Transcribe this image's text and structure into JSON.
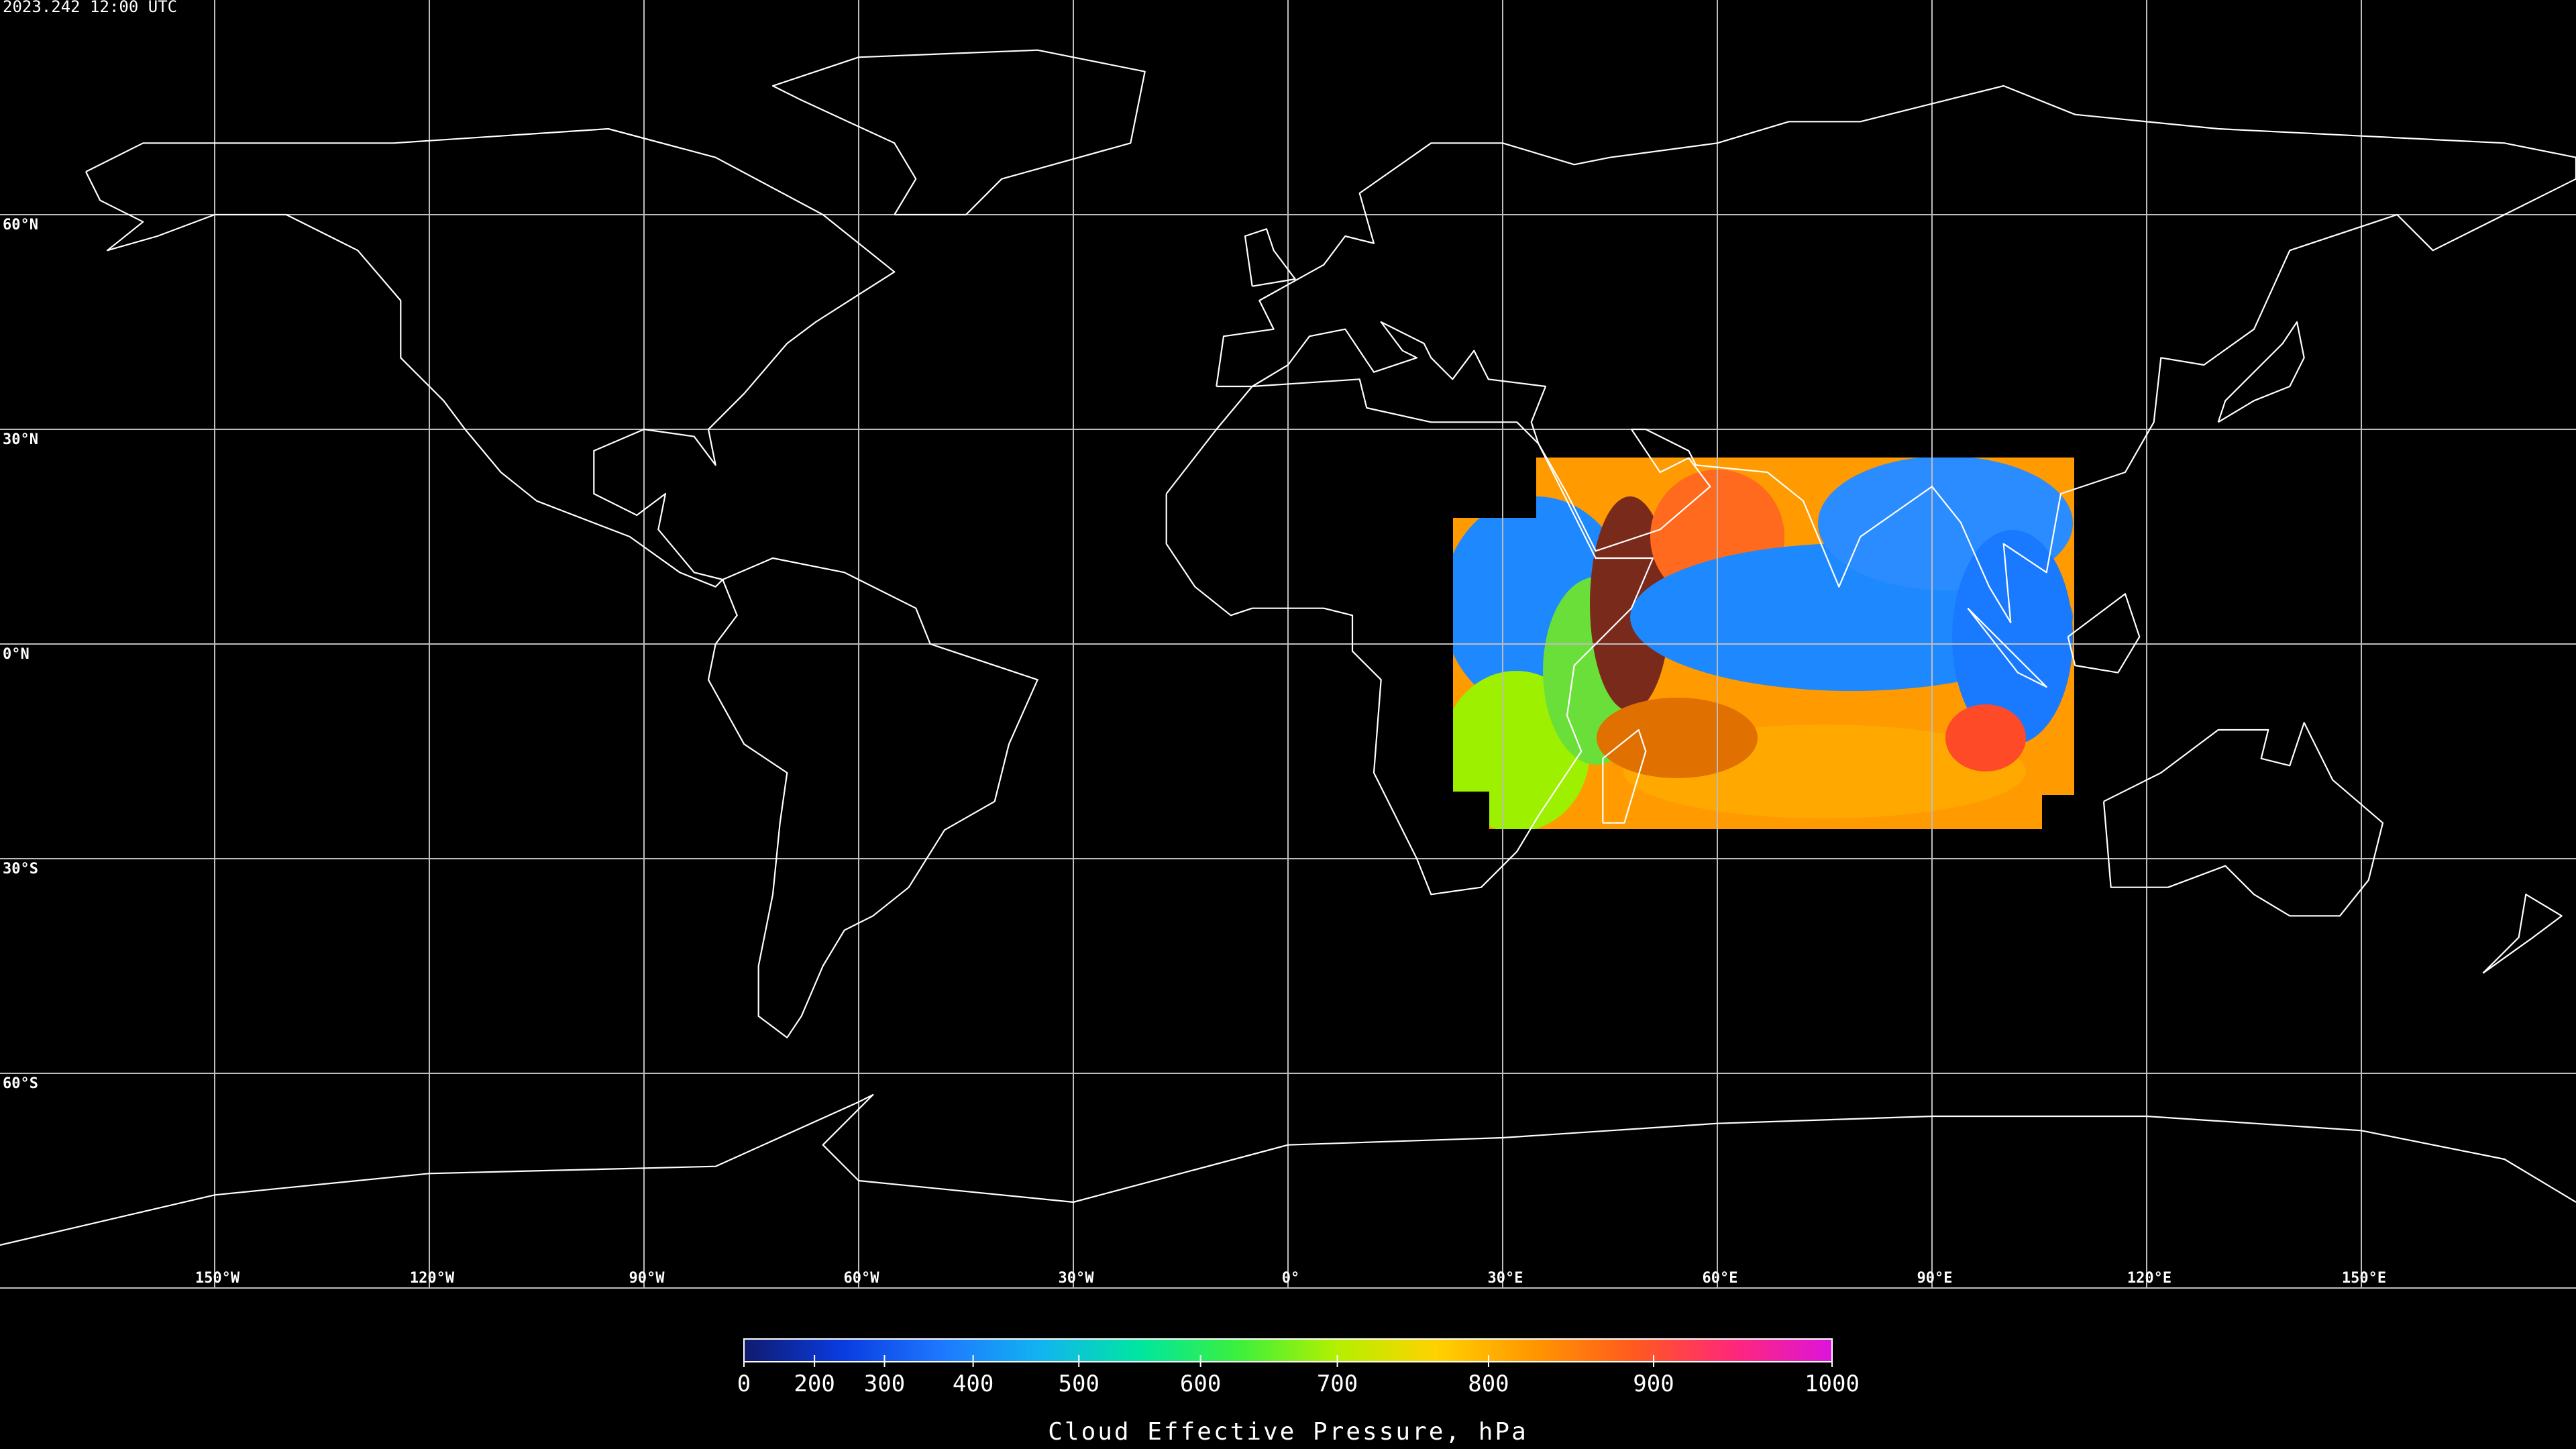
{
  "title": "2023.242 12:00 UTC",
  "map": {
    "lat_ticks": [
      {
        "value": 60,
        "label": "60°N"
      },
      {
        "value": 30,
        "label": "30°N"
      },
      {
        "value": 0,
        "label": "0°N"
      },
      {
        "value": -30,
        "label": "30°S"
      },
      {
        "value": -60,
        "label": "60°S"
      }
    ],
    "lon_ticks": [
      {
        "value": -150,
        "label": "150°W"
      },
      {
        "value": -120,
        "label": "120°W"
      },
      {
        "value": -90,
        "label": "90°W"
      },
      {
        "value": -60,
        "label": "60°W"
      },
      {
        "value": -30,
        "label": "30°W"
      },
      {
        "value": 0,
        "label": "0°"
      },
      {
        "value": 30,
        "label": "30°E"
      },
      {
        "value": 60,
        "label": "60°E"
      },
      {
        "value": 90,
        "label": "90°E"
      },
      {
        "value": 120,
        "label": "120°E"
      },
      {
        "value": 150,
        "label": "150°E"
      }
    ]
  },
  "colorbar": {
    "label": "Cloud Effective Pressure, hPa",
    "lim": [
      0,
      1000
    ],
    "ticks": [
      0,
      200,
      300,
      400,
      500,
      600,
      700,
      800,
      900,
      1000
    ],
    "colors": [
      "#101a6e",
      "#0a3ce0",
      "#1e78ff",
      "#12b4f0",
      "#00e6a0",
      "#3cf03c",
      "#b4f000",
      "#ffd200",
      "#ff9600",
      "#ff5a1e",
      "#ff2878",
      "#dc14dc"
    ]
  }
}
